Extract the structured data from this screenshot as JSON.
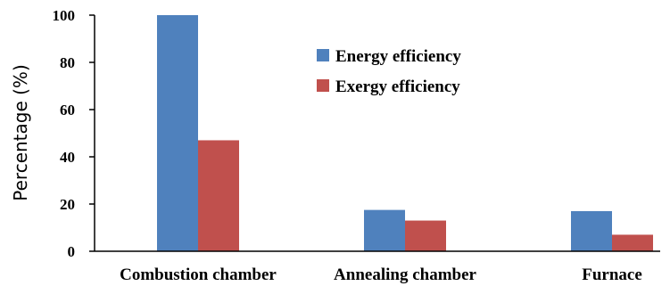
{
  "chart_data": {
    "type": "bar",
    "categories": [
      "Combustion chamber",
      "Annealing chamber",
      "Furnace"
    ],
    "series": [
      {
        "name": "Energy efficiency",
        "values": [
          100,
          17.5,
          17
        ],
        "color": "#4F81BD"
      },
      {
        "name": "Exergy efficiency",
        "values": [
          47,
          13,
          7
        ],
        "color": "#C0504D"
      }
    ],
    "title": "",
    "xlabel": "",
    "ylabel": "Percentage (%)",
    "ylim": [
      0,
      100
    ],
    "yticks": [
      "0",
      "20",
      "40",
      "60",
      "80",
      "100"
    ],
    "grid": false,
    "legend": "top-center"
  }
}
